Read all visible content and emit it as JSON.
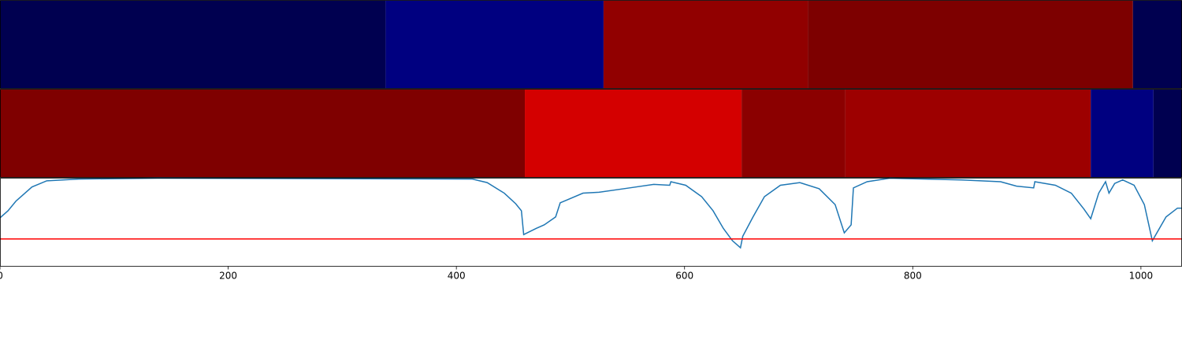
{
  "chart_data": [
    {
      "type": "bands",
      "xlim": [
        0,
        1036
      ],
      "edges": [
        0,
        338,
        529,
        708,
        993,
        1036
      ],
      "colors": [
        "#000050",
        "#000080",
        "#910000",
        "#7d0000",
        "#000050"
      ]
    },
    {
      "type": "bands",
      "xlim": [
        0,
        1036
      ],
      "edges": [
        0,
        460,
        650,
        741,
        956,
        1011,
        1036
      ],
      "colors": [
        "#7f0000",
        "#d40000",
        "#8b0000",
        "#9d0000",
        "#000080",
        "#000050"
      ]
    },
    {
      "type": "line",
      "xlim": [
        0,
        1036
      ],
      "ylim": [
        0,
        1
      ],
      "xticks": [
        0,
        200,
        400,
        600,
        800,
        1000
      ],
      "threshold": 0.31,
      "threshold_color": "#ff0000",
      "series": [
        {
          "color": "#1f77b4",
          "x": [
            0,
            7,
            14,
            28,
            41,
            69,
            138,
            414,
            427,
            442,
            452,
            457,
            459,
            470,
            477,
            487,
            491,
            511,
            525,
            552,
            573,
            587,
            588,
            601,
            615,
            625,
            634,
            642,
            649,
            651,
            660,
            670,
            684,
            701,
            718,
            732,
            740,
            746,
            748,
            760,
            780,
            843,
            877,
            891,
            906,
            907,
            925,
            939,
            950,
            956,
            963,
            969,
            972,
            977,
            984,
            994,
            1003,
            1010,
            1022,
            1032,
            1036
          ],
          "values": [
            0.55,
            0.63,
            0.74,
            0.9,
            0.97,
            0.99,
            1.0,
            0.99,
            0.95,
            0.83,
            0.71,
            0.63,
            0.36,
            0.43,
            0.47,
            0.56,
            0.72,
            0.83,
            0.84,
            0.89,
            0.93,
            0.92,
            0.96,
            0.92,
            0.79,
            0.63,
            0.43,
            0.29,
            0.21,
            0.34,
            0.56,
            0.79,
            0.92,
            0.95,
            0.88,
            0.7,
            0.38,
            0.47,
            0.89,
            0.96,
            1.0,
            0.98,
            0.96,
            0.91,
            0.89,
            0.96,
            0.92,
            0.83,
            0.65,
            0.54,
            0.83,
            0.96,
            0.83,
            0.94,
            0.98,
            0.92,
            0.7,
            0.29,
            0.56,
            0.66,
            0.66
          ]
        }
      ]
    }
  ]
}
